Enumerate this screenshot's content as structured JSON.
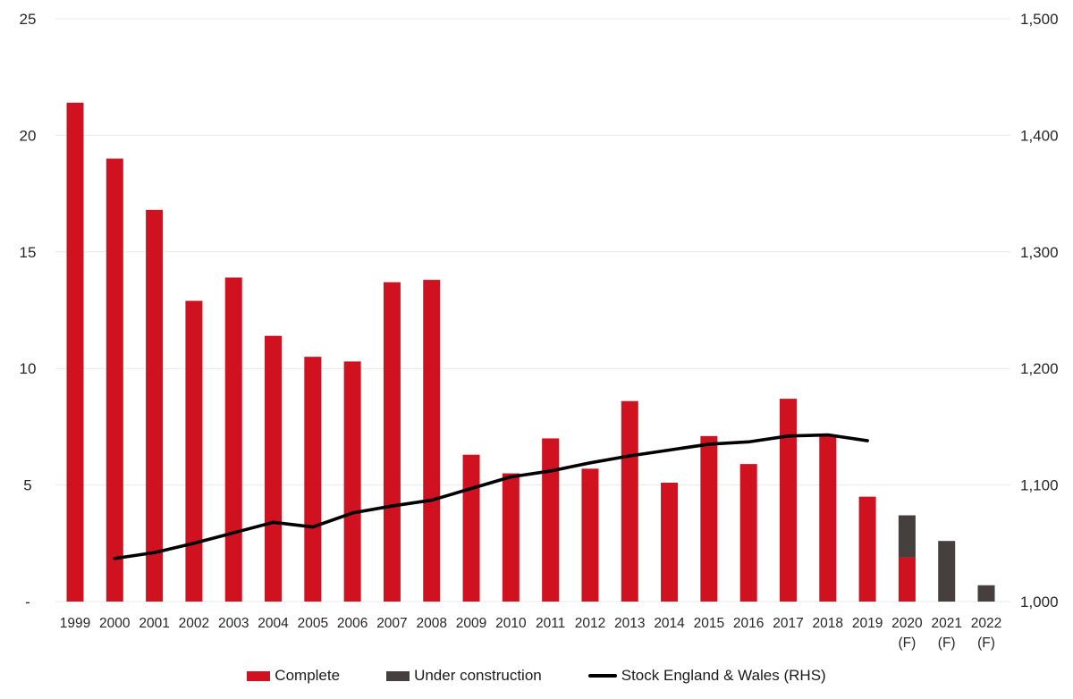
{
  "chart_data": {
    "type": "bar",
    "subtype": "combo-stacked-bar-line",
    "title": "",
    "grid": "horizontal",
    "legend_position": "bottom",
    "colors": {
      "complete_bar": "#D0111F",
      "under_construction_bar": "#453F3E",
      "stock_line": "#000000",
      "gridline": "#E8E8E8",
      "axis_text": "#262626"
    },
    "categories": [
      {
        "year": "1999",
        "note": ""
      },
      {
        "year": "2000",
        "note": ""
      },
      {
        "year": "2001",
        "note": ""
      },
      {
        "year": "2002",
        "note": ""
      },
      {
        "year": "2003",
        "note": ""
      },
      {
        "year": "2004",
        "note": ""
      },
      {
        "year": "2005",
        "note": ""
      },
      {
        "year": "2006",
        "note": ""
      },
      {
        "year": "2007",
        "note": ""
      },
      {
        "year": "2008",
        "note": ""
      },
      {
        "year": "2009",
        "note": ""
      },
      {
        "year": "2010",
        "note": ""
      },
      {
        "year": "2011",
        "note": ""
      },
      {
        "year": "2012",
        "note": ""
      },
      {
        "year": "2013",
        "note": ""
      },
      {
        "year": "2014",
        "note": ""
      },
      {
        "year": "2015",
        "note": ""
      },
      {
        "year": "2016",
        "note": ""
      },
      {
        "year": "2017",
        "note": ""
      },
      {
        "year": "2018",
        "note": ""
      },
      {
        "year": "2019",
        "note": ""
      },
      {
        "year": "2020",
        "note": "(F)"
      },
      {
        "year": "2021",
        "note": "(F)"
      },
      {
        "year": "2022",
        "note": "(F)"
      }
    ],
    "left_axis": {
      "min": 0,
      "max": 25,
      "ticks": [
        {
          "value": 0,
          "label": "-"
        },
        {
          "value": 5,
          "label": "5"
        },
        {
          "value": 10,
          "label": "10"
        },
        {
          "value": 15,
          "label": "15"
        },
        {
          "value": 20,
          "label": "20"
        },
        {
          "value": 25,
          "label": "25"
        }
      ]
    },
    "right_axis": {
      "min": 1000,
      "max": 1500,
      "ticks": [
        {
          "value": 1000,
          "label": "1,000"
        },
        {
          "value": 1100,
          "label": "1,100"
        },
        {
          "value": 1200,
          "label": "1,200"
        },
        {
          "value": 1300,
          "label": "1,300"
        },
        {
          "value": 1400,
          "label": "1,400"
        },
        {
          "value": 1500,
          "label": "1,500"
        }
      ]
    },
    "series": [
      {
        "name": "Complete",
        "type": "bar",
        "stack": "housing",
        "axis": "left",
        "color": "#D0111F",
        "values": [
          21.4,
          19.0,
          16.8,
          12.9,
          13.9,
          11.4,
          10.5,
          10.3,
          13.7,
          13.8,
          6.3,
          5.5,
          7.0,
          5.7,
          8.6,
          5.1,
          7.1,
          5.9,
          8.7,
          7.1,
          4.5,
          1.9,
          0,
          0
        ]
      },
      {
        "name": "Under construction",
        "type": "bar",
        "stack": "housing",
        "axis": "left",
        "color": "#453F3E",
        "values": [
          0,
          0,
          0,
          0,
          0,
          0,
          0,
          0,
          0,
          0,
          0,
          0,
          0,
          0,
          0,
          0,
          0,
          0,
          0,
          0,
          0,
          1.8,
          2.6,
          0.7
        ]
      },
      {
        "name": "Stock England & Wales (RHS)",
        "type": "line",
        "axis": "right",
        "color": "#000000",
        "values": [
          null,
          1037,
          1042,
          1050,
          1059,
          1068,
          1064,
          1076,
          1082,
          1087,
          1097,
          1107,
          1112,
          1119,
          1125,
          1130,
          1135,
          1137,
          1142,
          1143,
          1138,
          null,
          null,
          null
        ]
      }
    ]
  }
}
